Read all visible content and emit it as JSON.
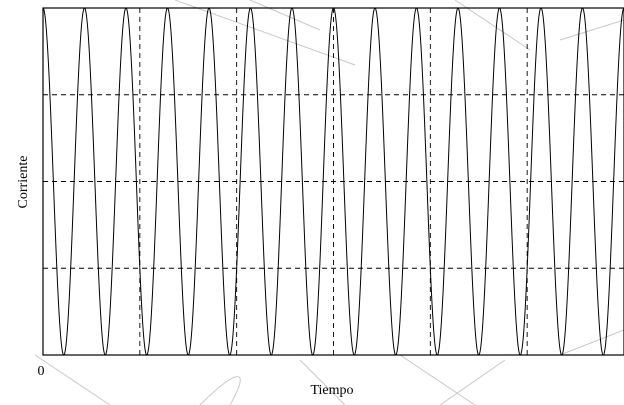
{
  "chart_data": {
    "type": "line",
    "title": "",
    "xlabel": "Tiempo",
    "ylabel": "Corriente",
    "x_tick_labels": [
      "0"
    ],
    "grid": true,
    "grid_style": "dashed",
    "series": [
      {
        "signal": "sine",
        "cycles": 14,
        "phase_deg": 0,
        "amplitude": 1,
        "offset": 0,
        "color": "#000000"
      }
    ],
    "xlim": [
      0,
      14
    ],
    "ylim": [
      -1,
      1
    ],
    "x_grid_divisions": 6,
    "y_grid_divisions": 4
  }
}
